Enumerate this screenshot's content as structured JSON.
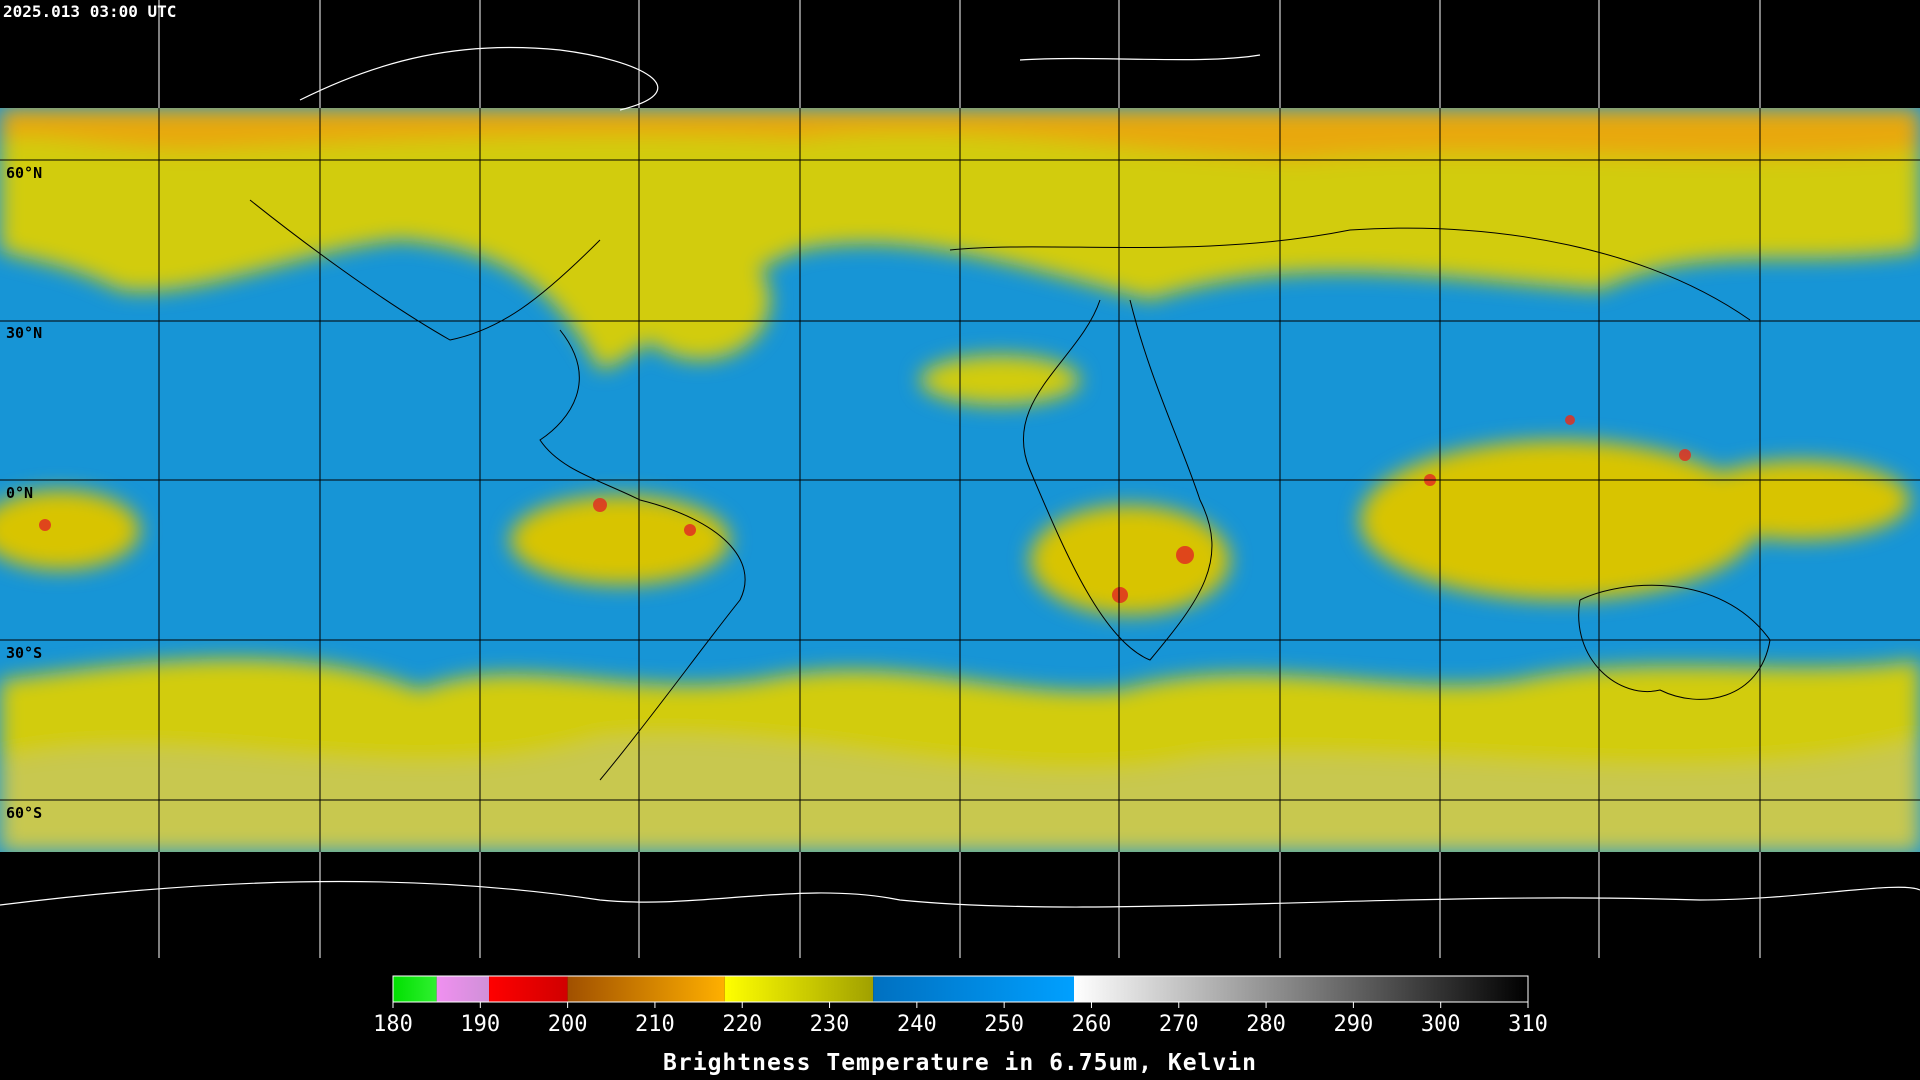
{
  "timestamp": "2025.013 03:00 UTC",
  "latitude_labels": [
    "60°N",
    "30°N",
    "0°N",
    "30°S",
    "60°S"
  ],
  "colorbar": {
    "title": "Brightness Temperature in 6.75um, Kelvin",
    "range": [
      180,
      310
    ],
    "ticks": [
      180,
      190,
      200,
      210,
      220,
      230,
      240,
      250,
      260,
      270,
      280,
      290,
      300,
      310
    ],
    "segments": [
      {
        "from": 180,
        "to": 185,
        "colors": [
          "#00e000",
          "#30f030"
        ]
      },
      {
        "from": 185,
        "to": 191,
        "colors": [
          "#f090f0",
          "#d090d8"
        ]
      },
      {
        "from": 191,
        "to": 200,
        "colors": [
          "#ff0000",
          "#d00000"
        ]
      },
      {
        "from": 200,
        "to": 218,
        "colors": [
          "#a05000",
          "#ffb000"
        ]
      },
      {
        "from": 218,
        "to": 235,
        "colors": [
          "#ffff00",
          "#a0a000"
        ]
      },
      {
        "from": 235,
        "to": 258,
        "colors": [
          "#0070c0",
          "#00a0ff"
        ]
      },
      {
        "from": 258,
        "to": 310,
        "colors": [
          "#ffffff",
          "#000000"
        ]
      }
    ]
  }
}
